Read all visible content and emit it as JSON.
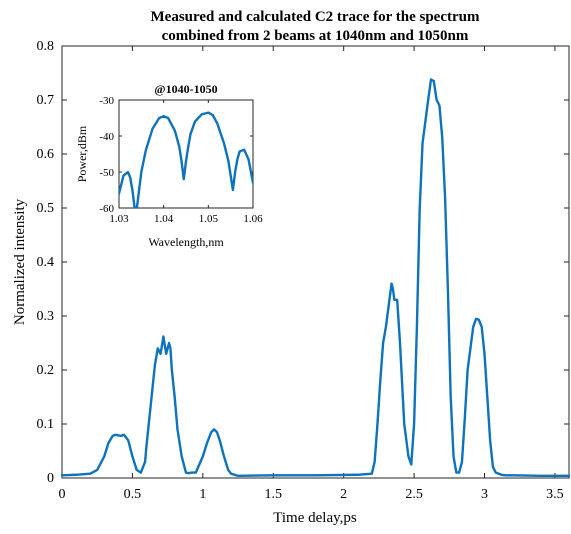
{
  "chart_data": [
    {
      "type": "line",
      "title": "Measured and calculated C2 trace for the spectrum",
      "subtitle": "combined from 2 beams at 1040nm and 1050nm",
      "xlabel": "Time delay,ps",
      "ylabel": "Normalized intensity",
      "xlim": [
        0,
        3.6
      ],
      "ylim": [
        0,
        0.8
      ],
      "xticks": [
        0,
        0.5,
        1,
        1.5,
        2,
        2.5,
        3,
        3.5
      ],
      "xtick_labels": [
        "0",
        "0.5",
        "1",
        "1.5",
        "2",
        "2.5",
        "3",
        "3.5"
      ],
      "yticks": [
        0,
        0.1,
        0.2,
        0.3,
        0.4,
        0.5,
        0.6,
        0.7,
        0.8
      ],
      "ytick_labels": [
        "0",
        "0.1",
        "0.2",
        "0.3",
        "0.4",
        "0.5",
        "0.6",
        "0.7",
        "0.8"
      ],
      "grid": false,
      "series": [
        {
          "color": "#0e72bd",
          "x": [
            0,
            0.1,
            0.2,
            0.25,
            0.3,
            0.33,
            0.36,
            0.38,
            0.42,
            0.44,
            0.47,
            0.5,
            0.53,
            0.56,
            0.59,
            0.6,
            0.62,
            0.64,
            0.66,
            0.68,
            0.7,
            0.72,
            0.74,
            0.76,
            0.77,
            0.78,
            0.8,
            0.82,
            0.85,
            0.87,
            0.88,
            0.9,
            0.92,
            0.95,
            1.0,
            1.03,
            1.06,
            1.08,
            1.1,
            1.12,
            1.15,
            1.18,
            1.2,
            1.25,
            1.5,
            1.8,
            2.1,
            2.2,
            2.22,
            2.24,
            2.26,
            2.28,
            2.3,
            2.32,
            2.34,
            2.35,
            2.36,
            2.38,
            2.4,
            2.43,
            2.46,
            2.48,
            2.5,
            2.52,
            2.54,
            2.56,
            2.58,
            2.6,
            2.62,
            2.64,
            2.66,
            2.68,
            2.7,
            2.72,
            2.74,
            2.76,
            2.78,
            2.8,
            2.82,
            2.84,
            2.86,
            2.88,
            2.9,
            2.92,
            2.94,
            2.96,
            2.98,
            3.0,
            3.02,
            3.04,
            3.06,
            3.08,
            3.1,
            3.12,
            3.15,
            3.2,
            3.4,
            3.6
          ],
          "y": [
            0.005,
            0.006,
            0.008,
            0.015,
            0.04,
            0.065,
            0.078,
            0.08,
            0.078,
            0.08,
            0.07,
            0.04,
            0.015,
            0.01,
            0.03,
            0.06,
            0.11,
            0.16,
            0.21,
            0.24,
            0.23,
            0.262,
            0.23,
            0.25,
            0.24,
            0.2,
            0.15,
            0.09,
            0.04,
            0.02,
            0.01,
            0.009,
            0.01,
            0.01,
            0.04,
            0.065,
            0.085,
            0.09,
            0.085,
            0.07,
            0.04,
            0.015,
            0.008,
            0.004,
            0.005,
            0.005,
            0.006,
            0.008,
            0.03,
            0.1,
            0.18,
            0.25,
            0.28,
            0.32,
            0.36,
            0.35,
            0.33,
            0.33,
            0.25,
            0.1,
            0.04,
            0.025,
            0.1,
            0.28,
            0.5,
            0.62,
            0.66,
            0.7,
            0.738,
            0.735,
            0.7,
            0.69,
            0.63,
            0.52,
            0.35,
            0.15,
            0.04,
            0.01,
            0.01,
            0.03,
            0.11,
            0.2,
            0.24,
            0.28,
            0.295,
            0.293,
            0.28,
            0.23,
            0.15,
            0.07,
            0.02,
            0.01,
            0.008,
            0.006,
            0.005,
            0.005,
            0.004,
            0.004
          ]
        }
      ]
    },
    {
      "type": "line",
      "title": "@1040-1050",
      "xlabel": "Wavelength,nm",
      "ylabel": "Power,dBm",
      "xlim": [
        1.03,
        1.06
      ],
      "ylim": [
        -60,
        -30
      ],
      "xticks": [
        1.03,
        1.04,
        1.05,
        1.06
      ],
      "xtick_labels": [
        "1.03",
        "1.04",
        "1.05",
        "1.06"
      ],
      "yticks": [
        -60,
        -50,
        -40,
        -30
      ],
      "ytick_labels": [
        "-60",
        "-50",
        "-40",
        "-30"
      ],
      "grid": false,
      "series": [
        {
          "color": "#0e72bd",
          "x": [
            1.03,
            1.031,
            1.032,
            1.0325,
            1.033,
            1.0335,
            1.034,
            1.035,
            1.036,
            1.0375,
            1.039,
            1.04,
            1.041,
            1.0425,
            1.0435,
            1.044,
            1.0445,
            1.045,
            1.0455,
            1.046,
            1.047,
            1.0485,
            1.05,
            1.051,
            1.052,
            1.0535,
            1.0545,
            1.055,
            1.0555,
            1.056,
            1.0565,
            1.057,
            1.058,
            1.059,
            1.06
          ],
          "y": [
            -56,
            -51,
            -50,
            -51.5,
            -55,
            -60,
            -60,
            -50,
            -44,
            -38,
            -35,
            -34.5,
            -35,
            -38.5,
            -43,
            -47,
            -52,
            -47,
            -43,
            -39.5,
            -36,
            -34,
            -33.5,
            -34.2,
            -36.5,
            -42,
            -47,
            -51,
            -55,
            -50,
            -46.5,
            -44.3,
            -43.8,
            -46.5,
            -53
          ]
        }
      ]
    }
  ]
}
